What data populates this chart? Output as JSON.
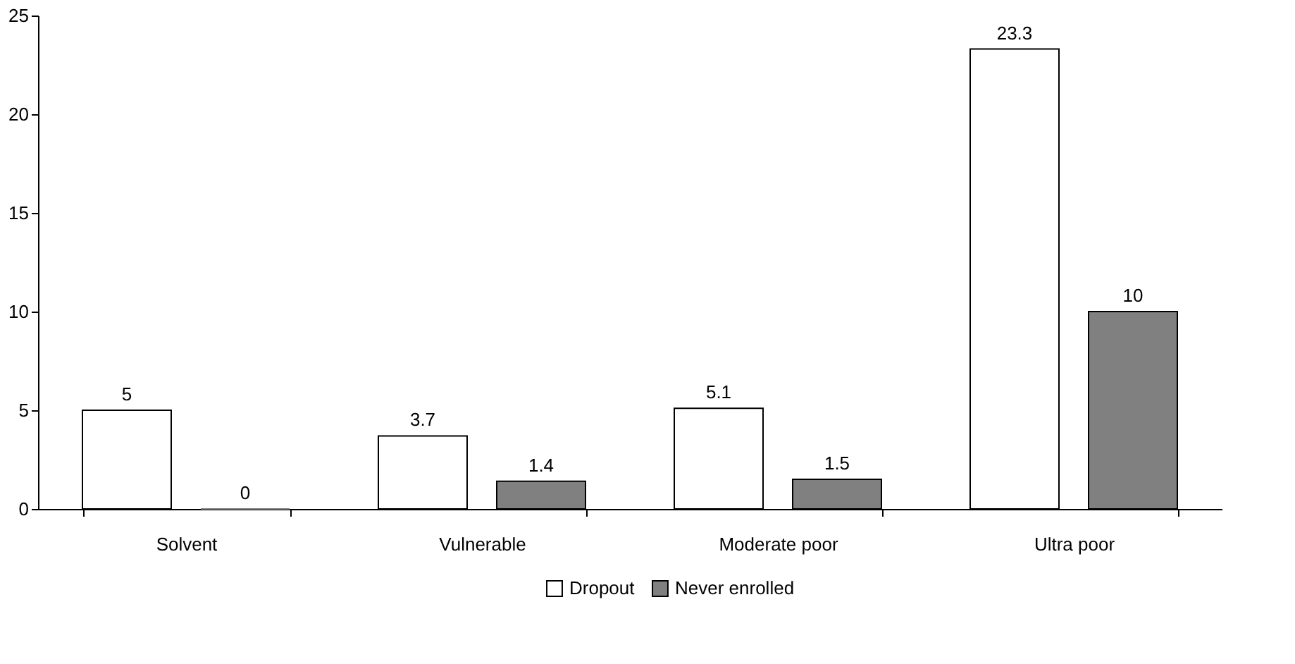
{
  "chart_data": {
    "type": "bar",
    "categories": [
      "Solvent",
      "Vulnerable",
      "Moderate poor",
      "Ultra poor"
    ],
    "series": [
      {
        "name": "Dropout",
        "color": "#ffffff",
        "values": [
          5,
          3.7,
          5.1,
          23.3
        ]
      },
      {
        "name": "Never enrolled",
        "color": "#808080",
        "values": [
          0,
          1.4,
          1.5,
          10
        ]
      }
    ],
    "ylim": [
      0,
      25
    ],
    "yticks": [
      0,
      5,
      10,
      15,
      20,
      25
    ],
    "data_labels": true,
    "grid": false,
    "legend": "bottom"
  }
}
